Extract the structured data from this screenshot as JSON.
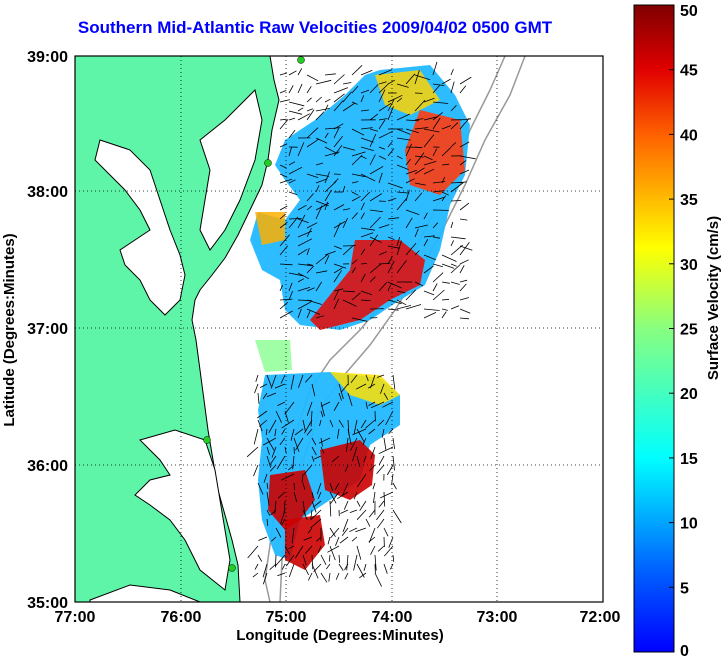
{
  "title": "Southern Mid-Atlantic Raw Velocities 2009/04/02 0500 GMT",
  "axes": {
    "xlabel": "Longitude (Degrees:Minutes)",
    "ylabel": "Latitude (Degrees:Minutes)",
    "xticks": [
      "77:00",
      "76:00",
      "75:00",
      "74:00",
      "73:00",
      "72:00"
    ],
    "yticks": [
      "39:00",
      "38:00",
      "37:00",
      "36:00",
      "35:00"
    ]
  },
  "colorbar": {
    "label": "Surface Velocity (cm/s)",
    "ticks": [
      "50",
      "45",
      "40",
      "35",
      "30",
      "25",
      "20",
      "15",
      "10",
      "5",
      "0"
    ],
    "min": 0,
    "max": 50
  },
  "colors": {
    "land": "#5ef5a9",
    "coastline": "#000000",
    "bathymetry": "#999999",
    "grid": "#000000",
    "title": "#0000ff",
    "station": "#22cc22"
  }
}
